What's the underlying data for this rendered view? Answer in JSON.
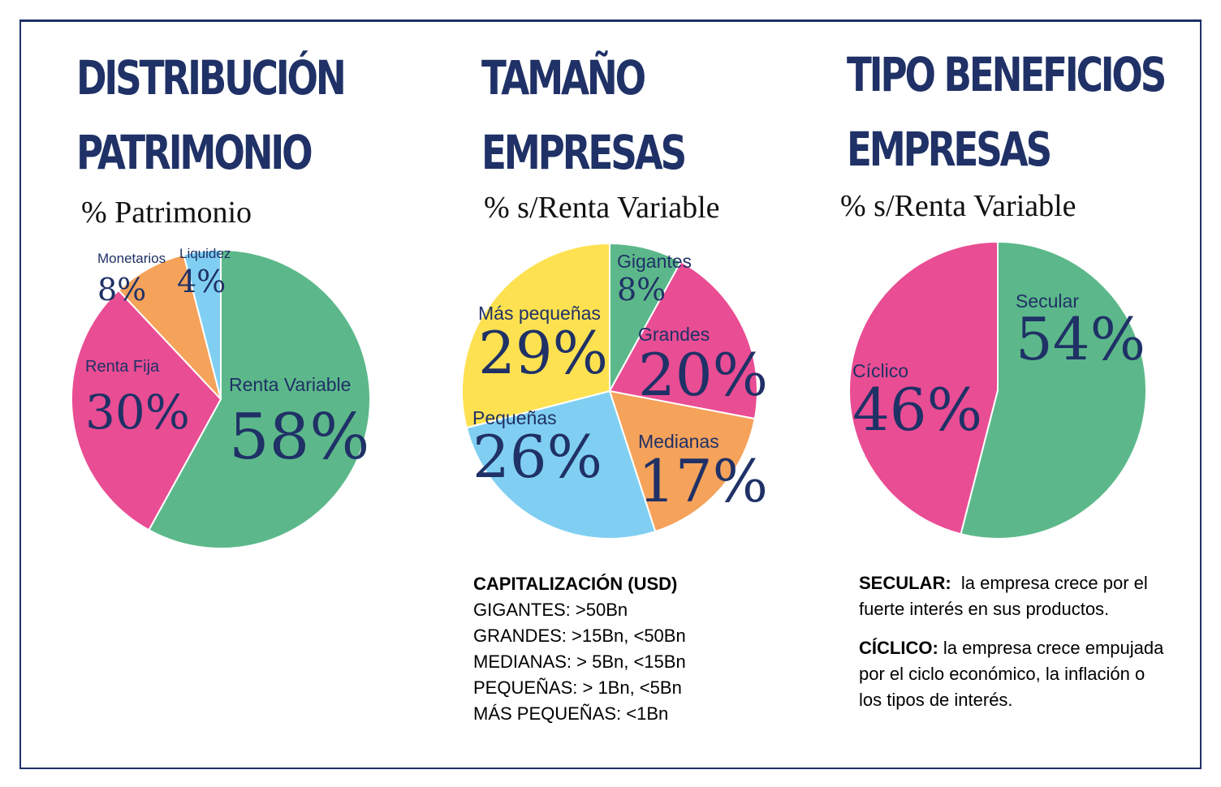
{
  "colors": {
    "navy": "#1f3166",
    "green": "#5cb88a",
    "pink": "#e94d93",
    "orange": "#f5a25a",
    "skyblue": "#80cff2",
    "yellow": "#fde150"
  },
  "charts": [
    {
      "heading_1": "DISTRIBUCIÓN",
      "heading_2": "PATRIMONIO",
      "subtitle": "% Patrimonio"
    },
    {
      "heading_1": "TAMAÑO",
      "heading_2": "EMPRESAS",
      "subtitle": "% s/Renta Variable"
    },
    {
      "heading_1": "TIPO BENEFICIOS",
      "heading_2": "EMPRESAS",
      "subtitle": "% s/Renta Variable"
    }
  ],
  "chart_data": [
    {
      "type": "pie",
      "title": "DISTRIBUCIÓN PATRIMONIO",
      "subtitle": "% Patrimonio",
      "slices": [
        {
          "label": "Renta Variable",
          "value": 58,
          "display": "58%",
          "color": "#5cb88a"
        },
        {
          "label": "Renta Fija",
          "value": 30,
          "display": "30%",
          "color": "#e94d93"
        },
        {
          "label": "Monetarios",
          "value": 8,
          "display": "8%",
          "color": "#f5a25a"
        },
        {
          "label": "Liquidez",
          "value": 4,
          "display": "4%",
          "color": "#80cff2"
        }
      ]
    },
    {
      "type": "pie",
      "title": "TAMAÑO EMPRESAS",
      "subtitle": "% s/Renta Variable",
      "slices": [
        {
          "label": "Gigantes",
          "value": 8,
          "display": "8%",
          "color": "#5cb88a"
        },
        {
          "label": "Grandes",
          "value": 20,
          "display": "20%",
          "color": "#e94d93"
        },
        {
          "label": "Medianas",
          "value": 17,
          "display": "17%",
          "color": "#f5a25a"
        },
        {
          "label": "Pequeñas",
          "value": 26,
          "display": "26%",
          "color": "#80cff2"
        },
        {
          "label": "Más pequeñas",
          "value": 29,
          "display": "29%",
          "color": "#fde150"
        }
      ]
    },
    {
      "type": "pie",
      "title": "TIPO BENEFICIOS EMPRESAS",
      "subtitle": "% s/Renta Variable",
      "slices": [
        {
          "label": "Secular",
          "value": 54,
          "display": "54%",
          "color": "#5cb88a"
        },
        {
          "label": "Cíclico",
          "value": 46,
          "display": "46%",
          "color": "#e94d93"
        }
      ]
    }
  ],
  "capitalizacion": {
    "title": "CAPITALIZACIÓN (USD)",
    "lines": [
      "GIGANTES: >50Bn",
      "GRANDES:  >15Bn, <50Bn",
      "MEDIANAS: > 5Bn, <15Bn",
      "PEQUEÑAS: > 1Bn, <5Bn",
      "MÁS PEQUEÑAS: <1Bn"
    ]
  },
  "definiciones": [
    {
      "term": "SECULAR:",
      "text": "la empresa crece por el fuerte interés en sus productos."
    },
    {
      "term": "CÍCLICO:",
      "text": "la empresa crece empujada por el ciclo económico, la inflación o los tipos de interés."
    }
  ]
}
